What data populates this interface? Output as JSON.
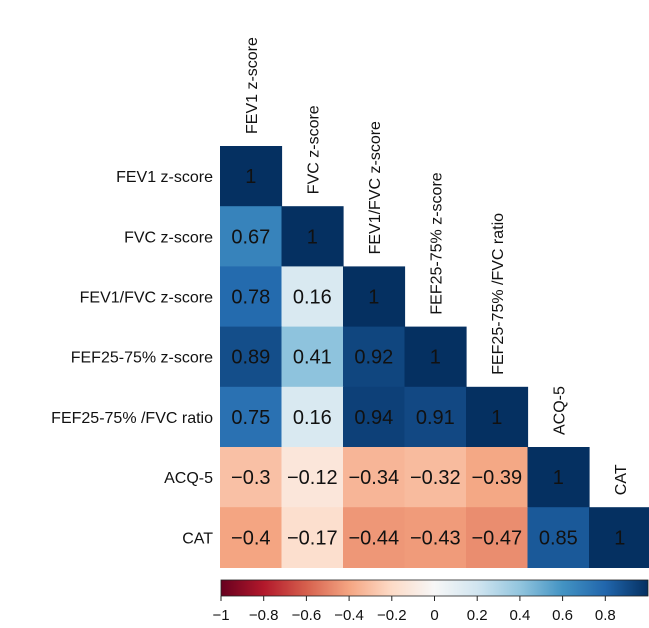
{
  "chart_data": {
    "type": "heatmap",
    "title": "",
    "labels": [
      "FEV1 z-score",
      "FVC z-score",
      "FEV1/FVC z-score",
      "FEF25-75% z-score",
      "FEF25-75% /FVC ratio",
      "ACQ-5",
      "CAT"
    ],
    "matrix": [
      [
        1
      ],
      [
        0.67,
        1
      ],
      [
        0.78,
        0.16,
        1
      ],
      [
        0.89,
        0.41,
        0.92,
        1
      ],
      [
        0.75,
        0.16,
        0.94,
        0.91,
        1
      ],
      [
        -0.3,
        -0.12,
        -0.34,
        -0.32,
        -0.39,
        1
      ],
      [
        -0.4,
        -0.17,
        -0.44,
        -0.43,
        -0.47,
        0.85,
        1
      ]
    ],
    "value_labels": [
      [
        "1"
      ],
      [
        "0.67",
        "1"
      ],
      [
        "0.78",
        "0.16",
        "1"
      ],
      [
        "0.89",
        "0.41",
        "0.92",
        "1"
      ],
      [
        "0.75",
        "0.16",
        "0.94",
        "0.91",
        "1"
      ],
      [
        "−0.3",
        "−0.12",
        "−0.34",
        "−0.32",
        "−0.39",
        "1"
      ],
      [
        "−0.4",
        "−0.17",
        "−0.44",
        "−0.43",
        "−0.47",
        "0.85",
        "1"
      ]
    ],
    "mask": "upper-triangle",
    "colormap": "RdBu",
    "colorbar": {
      "orientation": "horizontal",
      "placement": "bottom",
      "range": [
        -1,
        1
      ],
      "ticks": [
        -1,
        -0.8,
        -0.6,
        -0.4,
        -0.2,
        0,
        0.2,
        0.4,
        0.6,
        0.8
      ],
      "tick_labels": [
        "−1",
        "−0.8",
        "−0.6",
        "−0.4",
        "−0.2",
        "0",
        "0.2",
        "0.4",
        "0.6",
        "0.8"
      ]
    }
  }
}
